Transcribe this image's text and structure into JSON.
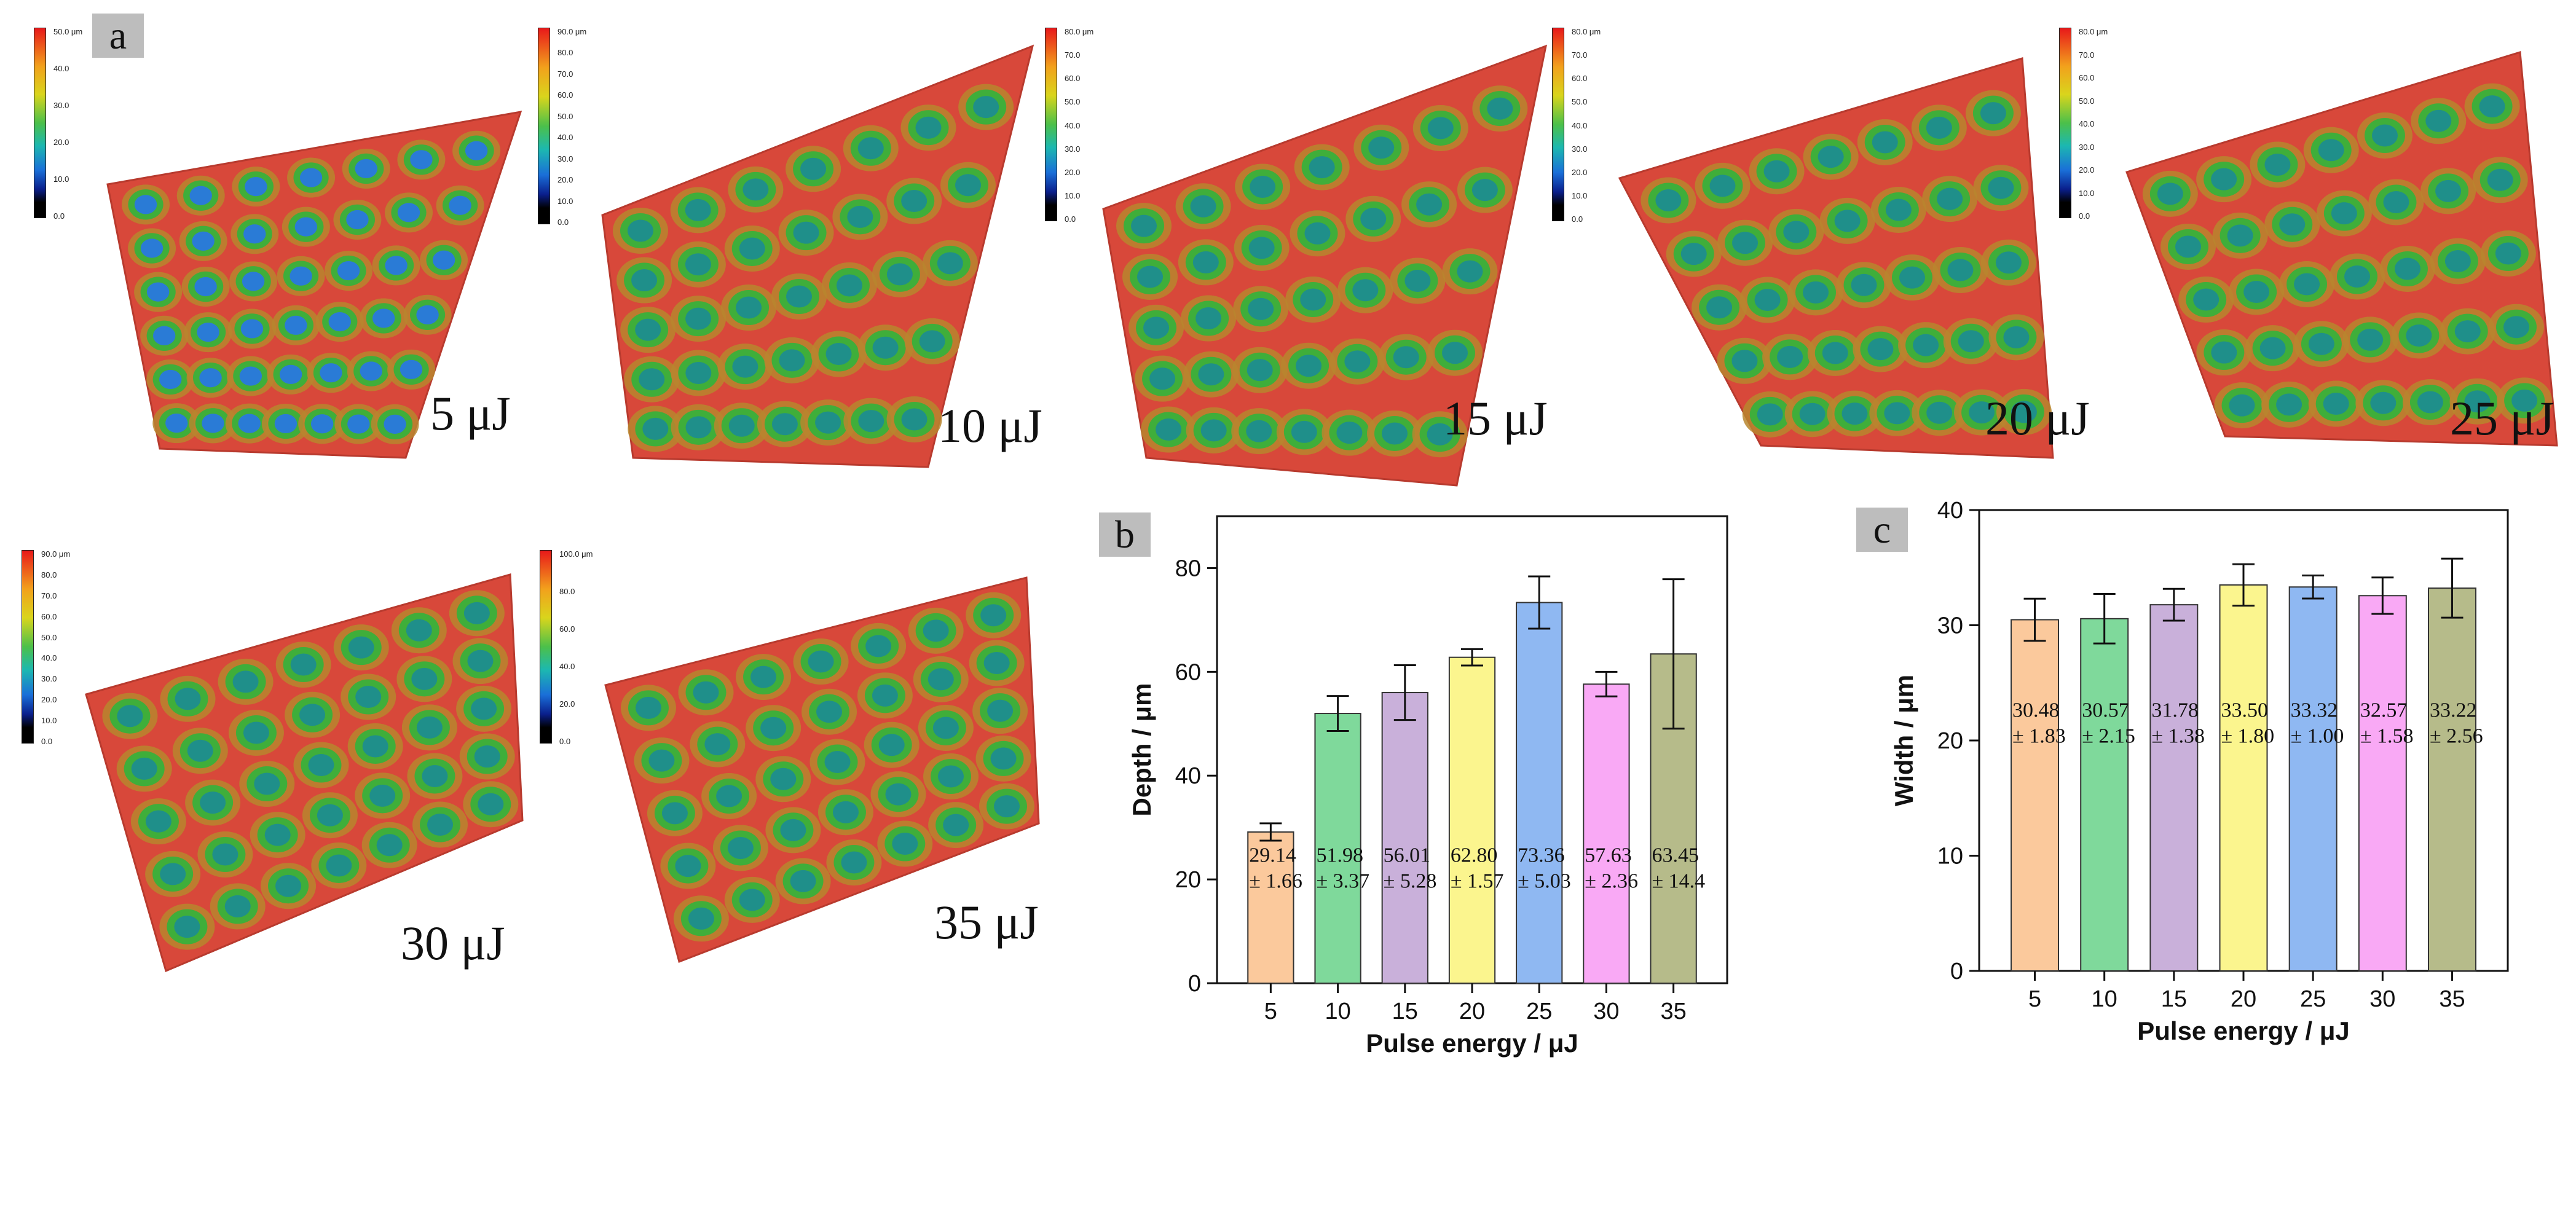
{
  "panels": {
    "a": "a",
    "b": "b",
    "c": "c"
  },
  "surface_maps": [
    {
      "energy_label": "5 μJ",
      "colorbar": {
        "max_label": "50.0 μm",
        "ticks": [
          "40.0",
          "30.0",
          "20.0",
          "10.0",
          "0.0"
        ]
      }
    },
    {
      "energy_label": "10 μJ",
      "colorbar": {
        "max_label": "90.0 μm",
        "ticks": [
          "80.0",
          "70.0",
          "60.0",
          "50.0",
          "40.0",
          "30.0",
          "20.0",
          "10.0",
          "0.0"
        ]
      }
    },
    {
      "energy_label": "15 μJ",
      "colorbar": {
        "max_label": "80.0 μm",
        "ticks": [
          "70.0",
          "60.0",
          "50.0",
          "40.0",
          "30.0",
          "20.0",
          "10.0",
          "0.0"
        ]
      }
    },
    {
      "energy_label": "20 μJ",
      "colorbar": {
        "max_label": "80.0 μm",
        "ticks": [
          "70.0",
          "60.0",
          "50.0",
          "40.0",
          "30.0",
          "20.0",
          "10.0",
          "0.0"
        ]
      }
    },
    {
      "energy_label": "25 μJ",
      "colorbar": {
        "max_label": "80.0 μm",
        "ticks": [
          "70.0",
          "60.0",
          "50.0",
          "40.0",
          "30.0",
          "20.0",
          "10.0",
          "0.0"
        ]
      }
    },
    {
      "energy_label": "30 μJ",
      "colorbar": {
        "max_label": "90.0 μm",
        "ticks": [
          "80.0",
          "70.0",
          "60.0",
          "50.0",
          "40.0",
          "30.0",
          "20.0",
          "10.0",
          "0.0"
        ]
      }
    },
    {
      "energy_label": "35 μJ",
      "colorbar": {
        "max_label": "100.0 μm",
        "ticks": [
          "80.0",
          "60.0",
          "40.0",
          "20.0",
          "0.0"
        ]
      }
    }
  ],
  "colors": {
    "surface": "#d8483a",
    "surface_edge": "#b83a2e",
    "bars": [
      "#fbc99c",
      "#7fd99b",
      "#c9b0da",
      "#fbf58e",
      "#8fb8f2",
      "#f9a9f5",
      "#b6bb8a"
    ]
  },
  "chart_data": [
    {
      "type": "bar",
      "panel": "b",
      "categories": [
        "5",
        "10",
        "15",
        "20",
        "25",
        "30",
        "35"
      ],
      "values": [
        29.14,
        51.98,
        56.01,
        62.8,
        73.36,
        57.63,
        63.45
      ],
      "errors": [
        1.66,
        3.37,
        5.28,
        1.57,
        5.03,
        2.36,
        14.4
      ],
      "value_labels": [
        "29.14",
        "51.98",
        "56.01",
        "62.80",
        "73.36",
        "57.63",
        "63.45"
      ],
      "error_labels": [
        "± 1.66",
        "± 3.37",
        "± 5.28",
        "± 1.57",
        "± 5.03",
        "± 2.36",
        "± 14.4"
      ],
      "xlabel": "Pulse energy / μJ",
      "ylabel": "Depth / μm",
      "ylim": [
        0,
        90
      ],
      "yticks": [
        0,
        20,
        40,
        60,
        80
      ],
      "label_value_y": 21
    },
    {
      "type": "bar",
      "panel": "c",
      "categories": [
        "5",
        "10",
        "15",
        "20",
        "25",
        "30",
        "35"
      ],
      "values": [
        30.48,
        30.57,
        31.78,
        33.5,
        33.32,
        32.57,
        33.22
      ],
      "errors": [
        1.83,
        2.15,
        1.38,
        1.8,
        1.0,
        1.58,
        2.56
      ],
      "value_labels": [
        "30.48",
        "30.57",
        "31.78",
        "33.50",
        "33.32",
        "32.57",
        "33.22"
      ],
      "error_labels": [
        "± 1.83",
        "± 2.15",
        "± 1.38",
        "± 1.80",
        "± 1.00",
        "± 1.58",
        "± 2.56"
      ],
      "xlabel": "Pulse energy / μJ",
      "ylabel": "Width / μm",
      "ylim": [
        0,
        40
      ],
      "yticks": [
        0,
        10,
        20,
        30,
        40
      ],
      "label_value_y": 21
    }
  ]
}
